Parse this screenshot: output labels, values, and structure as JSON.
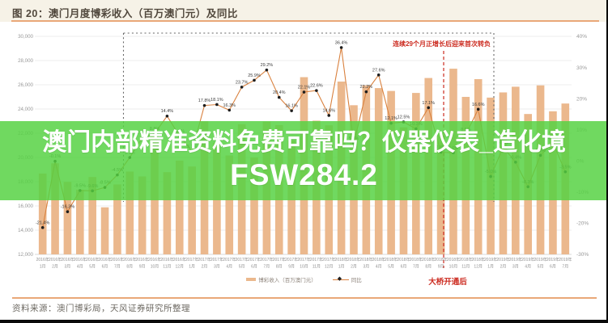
{
  "header": {
    "title": "图 20：澳门月度博彩收入（百万澳门元）及同比"
  },
  "overlay": {
    "line1": "澳门内部精准资料免费可靠吗？仪器仪表_造化境",
    "line2": "FSW284.2",
    "bg_color": "#55d241"
  },
  "annotations": {
    "box_label": "连续29个月正增长后迎来首次转负",
    "bridge_label": "大桥开通后"
  },
  "legend": {
    "bars": "博彩收入（百万澳门元）",
    "line": "同比"
  },
  "footer": {
    "source": "资料来源：澳门博彩局，天风证券研究所整理"
  },
  "colors": {
    "bar": "#ebb88d",
    "line": "#d9813e",
    "marker": "#1d1d1d",
    "point_label": "#3c3c3c",
    "grid": "#ececec",
    "axis_text": "#989898",
    "red": "#cc2b20",
    "box_dash": "#666666",
    "header_underline": "#e9a878"
  },
  "chart_data": {
    "type": "bar+line",
    "title": "澳门月度博彩收入（百万澳门元）及同比",
    "x_labels": [
      "2016年1月",
      "2016年2月",
      "2016年3月",
      "2016年4月",
      "2016年5月",
      "2016年6月",
      "2016年7月",
      "2016年8月",
      "2016年9月",
      "2016年10月",
      "2016年11月",
      "2016年12月",
      "2017年1月",
      "2017年2月",
      "2017年3月",
      "2017年4月",
      "2017年5月",
      "2017年6月",
      "2017年7月",
      "2017年8月",
      "2017年9月",
      "2017年10月",
      "2017年11月",
      "2017年12月",
      "2018年1月",
      "2018年2月",
      "2018年3月",
      "2018年4月",
      "2018年5月",
      "2018年6月",
      "2018年7月",
      "2018年8月",
      "2018年9月",
      "2018年10月",
      "2018年11月",
      "2018年12月",
      "2019年1月",
      "2019年2月",
      "2019年3月",
      "2019年4月",
      "2019年5月",
      "2019年6月",
      "2019年7月"
    ],
    "series": [
      {
        "name": "博彩收入（百万澳门元）",
        "type": "bar",
        "axis": "left",
        "values": [
          18674,
          19518,
          17980,
          17340,
          18389,
          15884,
          17770,
          18837,
          18434,
          21807,
          18789,
          19743,
          19255,
          22989,
          21224,
          20164,
          22743,
          19992,
          22963,
          22676,
          21408,
          26630,
          23039,
          22656,
          26265,
          24312,
          25952,
          25727,
          25491,
          22490,
          25327,
          26560,
          22008,
          27328,
          25002,
          26468,
          24942,
          25370,
          25840,
          23588,
          25952,
          23812,
          24453
        ]
      },
      {
        "name": "同比",
        "type": "line",
        "axis": "right",
        "values": [
          -21.4,
          -0.1,
          -16.3,
          -9.5,
          -9.6,
          -8.5,
          -4.5,
          1.1,
          7.4,
          8.8,
          14.4,
          8.0,
          3.1,
          17.8,
          18.1,
          16.3,
          23.7,
          25.9,
          29.2,
          20.4,
          16.1,
          22.1,
          22.6,
          14.6,
          36.4,
          5.7,
          22.2,
          27.6,
          12.1,
          12.5,
          10.3,
          17.1,
          2.8,
          2.6,
          8.5,
          16.6,
          -5.0,
          4.4,
          -0.4,
          -8.3,
          1.8,
          5.9,
          -3.5
        ]
      }
    ],
    "left_axis": {
      "min": 12000,
      "max": 30000,
      "step": 2000,
      "ticks": [
        "30,000",
        "28,000",
        "26,000",
        "24,000",
        "22,000",
        "20,000",
        "18,000",
        "16,000",
        "14,000",
        "12,000"
      ]
    },
    "right_axis": {
      "min": -30,
      "max": 40,
      "step": 10,
      "ticks": [
        "40%",
        "30%",
        "20%",
        "10%",
        "0%",
        "-10%",
        "-20%",
        "-30%"
      ]
    },
    "grid": true,
    "legend_position": "bottom",
    "annotation_box_range": [
      "2016年8月",
      "2018年12月"
    ],
    "bridge_line_at": "2018年10月"
  }
}
